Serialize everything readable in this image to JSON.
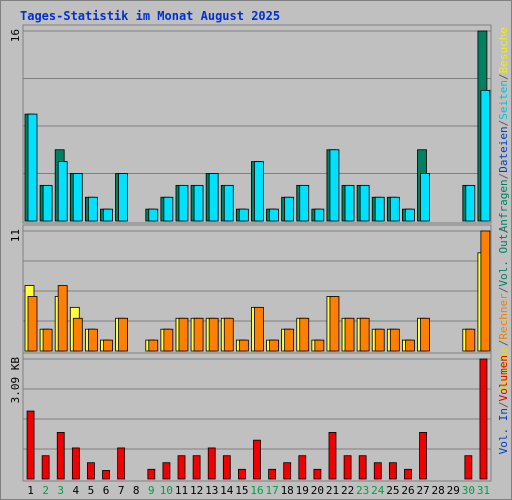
{
  "title": "Tages-Statistik im Monat August 2025",
  "chart_data": {
    "type": "bar",
    "categories": [
      "1",
      "2",
      "3",
      "4",
      "5",
      "6",
      "7",
      "8",
      "9",
      "10",
      "11",
      "12",
      "13",
      "14",
      "15",
      "16",
      "17",
      "18",
      "19",
      "20",
      "21",
      "22",
      "23",
      "24",
      "25",
      "26",
      "27",
      "28",
      "29",
      "30",
      "31"
    ],
    "weekend_days": [
      2,
      3,
      9,
      10,
      16,
      17,
      23,
      24,
      30,
      31
    ],
    "panels": [
      {
        "id": "top",
        "ymax_label": "16",
        "ymax": 16,
        "legend": [
          {
            "text": "Anfragen",
            "color": "#008060"
          },
          {
            "text": "/",
            "color": "#606060"
          },
          {
            "text": "Dateien",
            "color": "#0040c0"
          },
          {
            "text": "/",
            "color": "#606060"
          },
          {
            "text": "Seiten",
            "color": "#00c0e0"
          },
          {
            "text": "/",
            "color": "#606060"
          },
          {
            "text": "Besuche",
            "color": "#f0f000"
          }
        ],
        "series": [
          {
            "name": "Anfragen",
            "color": "#008060",
            "values": [
              9,
              3,
              6,
              4,
              2,
              1,
              4,
              0,
              1,
              2,
              3,
              3,
              4,
              3,
              1,
              5,
              1,
              2,
              3,
              1,
              6,
              3,
              3,
              2,
              2,
              1,
              6,
              0,
              0,
              3,
              16
            ]
          },
          {
            "name": "Dateien",
            "color": "#00e0ff",
            "values": [
              9,
              3,
              5,
              4,
              2,
              1,
              4,
              0,
              1,
              2,
              3,
              3,
              4,
              3,
              1,
              5,
              1,
              2,
              3,
              1,
              6,
              3,
              3,
              2,
              2,
              1,
              4,
              0,
              0,
              3,
              11
            ]
          }
        ]
      },
      {
        "id": "mid",
        "ymax_label": "11",
        "ymax": 11,
        "legend": [
          {
            "text": "Besuche",
            "color": "#e0e000"
          },
          {
            "text": "/",
            "color": "#606060"
          },
          {
            "text": "Rechner",
            "color": "#f08000"
          },
          {
            "text": "/",
            "color": "#606060"
          },
          {
            "text": "Vol. Out",
            "color": "#008060"
          },
          {
            "text": "/",
            "color": "#606060"
          }
        ],
        "series": [
          {
            "name": "Besuche",
            "color": "#ffff40",
            "values": [
              6,
              2,
              5,
              4,
              2,
              1,
              3,
              0,
              1,
              2,
              3,
              3,
              3,
              3,
              1,
              4,
              1,
              2,
              3,
              1,
              5,
              3,
              3,
              2,
              2,
              1,
              3,
              0,
              0,
              2,
              9
            ]
          },
          {
            "name": "Rechner",
            "color": "#ff8000",
            "values": [
              5,
              2,
              6,
              3,
              2,
              1,
              3,
              0,
              1,
              2,
              3,
              3,
              3,
              3,
              1,
              4,
              1,
              2,
              3,
              1,
              5,
              3,
              3,
              2,
              2,
              1,
              3,
              0,
              0,
              2,
              11
            ]
          }
        ]
      },
      {
        "id": "bot",
        "ymax_label": "3.09 KB",
        "ymax": 3.09,
        "legend": [
          {
            "text": "Vol. In",
            "color": "#0040c0"
          },
          {
            "text": "/",
            "color": "#606060"
          },
          {
            "text": "Volumen",
            "color": "#e00000"
          }
        ],
        "series": [
          {
            "name": "Volumen",
            "color": "#f00000",
            "values": [
              1.75,
              0.6,
              1.2,
              0.8,
              0.42,
              0.22,
              0.8,
              0,
              0.25,
              0.42,
              0.6,
              0.6,
              0.8,
              0.6,
              0.25,
              1.0,
              0.25,
              0.42,
              0.6,
              0.25,
              1.2,
              0.6,
              0.6,
              0.42,
              0.42,
              0.25,
              1.2,
              0,
              0,
              0.6,
              3.09
            ]
          }
        ]
      }
    ]
  }
}
